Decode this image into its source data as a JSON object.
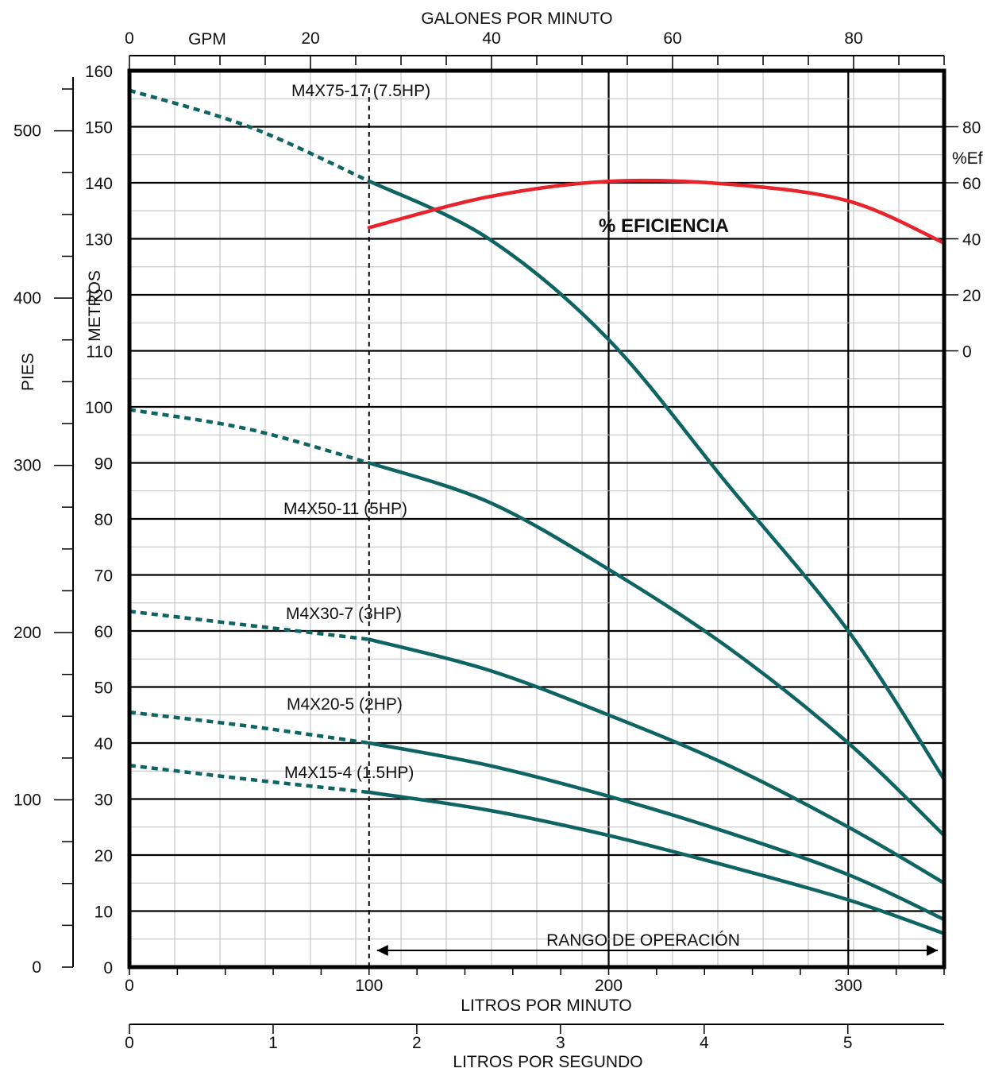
{
  "chart_data": {
    "type": "line",
    "axes": {
      "top": {
        "label": "GALONES POR MINUTO",
        "unit_label": "GPM",
        "ticks": [
          0,
          20,
          40,
          60,
          80
        ],
        "range": [
          0,
          90
        ]
      },
      "bottom": {
        "label": "LITROS POR MINUTO",
        "ticks": [
          0,
          100,
          200,
          300
        ],
        "range": [
          0,
          340
        ]
      },
      "bottom2": {
        "label": "LITROS POR SEGUNDO",
        "ticks": [
          0,
          1,
          2,
          3,
          4,
          5
        ],
        "range": [
          0,
          5.67
        ]
      },
      "left_m": {
        "label": "METROS",
        "ticks": [
          0,
          10,
          20,
          30,
          40,
          50,
          60,
          70,
          80,
          90,
          100,
          110,
          120,
          130,
          140,
          150,
          160
        ],
        "range": [
          0,
          160
        ]
      },
      "left_ft": {
        "label": "PIES",
        "ticks": [
          0,
          100,
          200,
          300,
          400,
          500
        ],
        "range": [
          0,
          525
        ]
      },
      "right_eff": {
        "label": "%Ef",
        "ticks": [
          0,
          20,
          40,
          60,
          80
        ],
        "range": [
          0,
          80
        ]
      }
    },
    "operating_range": {
      "label": "RANGO DE OPERACIÓN",
      "start": 100,
      "end": 340
    },
    "series": [
      {
        "name": "M4X75-17 (7.5HP)",
        "color": "#0e6363",
        "dashed_x": [
          0,
          50,
          100
        ],
        "dashed_y": [
          156.5,
          150,
          140.3
        ],
        "x": [
          100,
          150,
          200,
          250,
          300,
          340
        ],
        "y": [
          140.3,
          130,
          112,
          86,
          60,
          33.5
        ]
      },
      {
        "name": "M4X50-11 (5HP)",
        "color": "#0e6363",
        "dashed_x": [
          0,
          50,
          100
        ],
        "dashed_y": [
          99.5,
          96,
          90
        ],
        "x": [
          100,
          150,
          200,
          250,
          300,
          340
        ],
        "y": [
          90,
          83,
          71,
          57,
          40,
          23.5
        ]
      },
      {
        "name": "M4X30-7 (3HP)",
        "color": "#0e6363",
        "dashed_x": [
          0,
          50,
          100
        ],
        "dashed_y": [
          63.5,
          61,
          58.5
        ],
        "x": [
          100,
          150,
          200,
          250,
          300,
          340
        ],
        "y": [
          58.5,
          53,
          45,
          36,
          25,
          15
        ]
      },
      {
        "name": "M4X20-5 (2HP)",
        "color": "#0e6363",
        "dashed_x": [
          0,
          50,
          100
        ],
        "dashed_y": [
          45.5,
          43,
          40
        ],
        "x": [
          100,
          150,
          200,
          250,
          300,
          340
        ],
        "y": [
          40,
          36,
          30.5,
          24,
          16.5,
          8.5
        ]
      },
      {
        "name": "M4X15-4 (1.5HP)",
        "color": "#0e6363",
        "dashed_x": [
          0,
          50,
          100
        ],
        "dashed_y": [
          36,
          33.5,
          31.2
        ],
        "x": [
          100,
          150,
          200,
          250,
          300,
          340
        ],
        "y": [
          31.2,
          28,
          23.5,
          18,
          12,
          6
        ]
      },
      {
        "name": "% EFICIENCIA",
        "color": "#e8232b",
        "axis": "right_eff",
        "x": [
          100,
          150,
          200,
          250,
          300,
          340
        ],
        "y": [
          44,
          55,
          60.5,
          59.5,
          53.5,
          38.5
        ]
      }
    ]
  }
}
